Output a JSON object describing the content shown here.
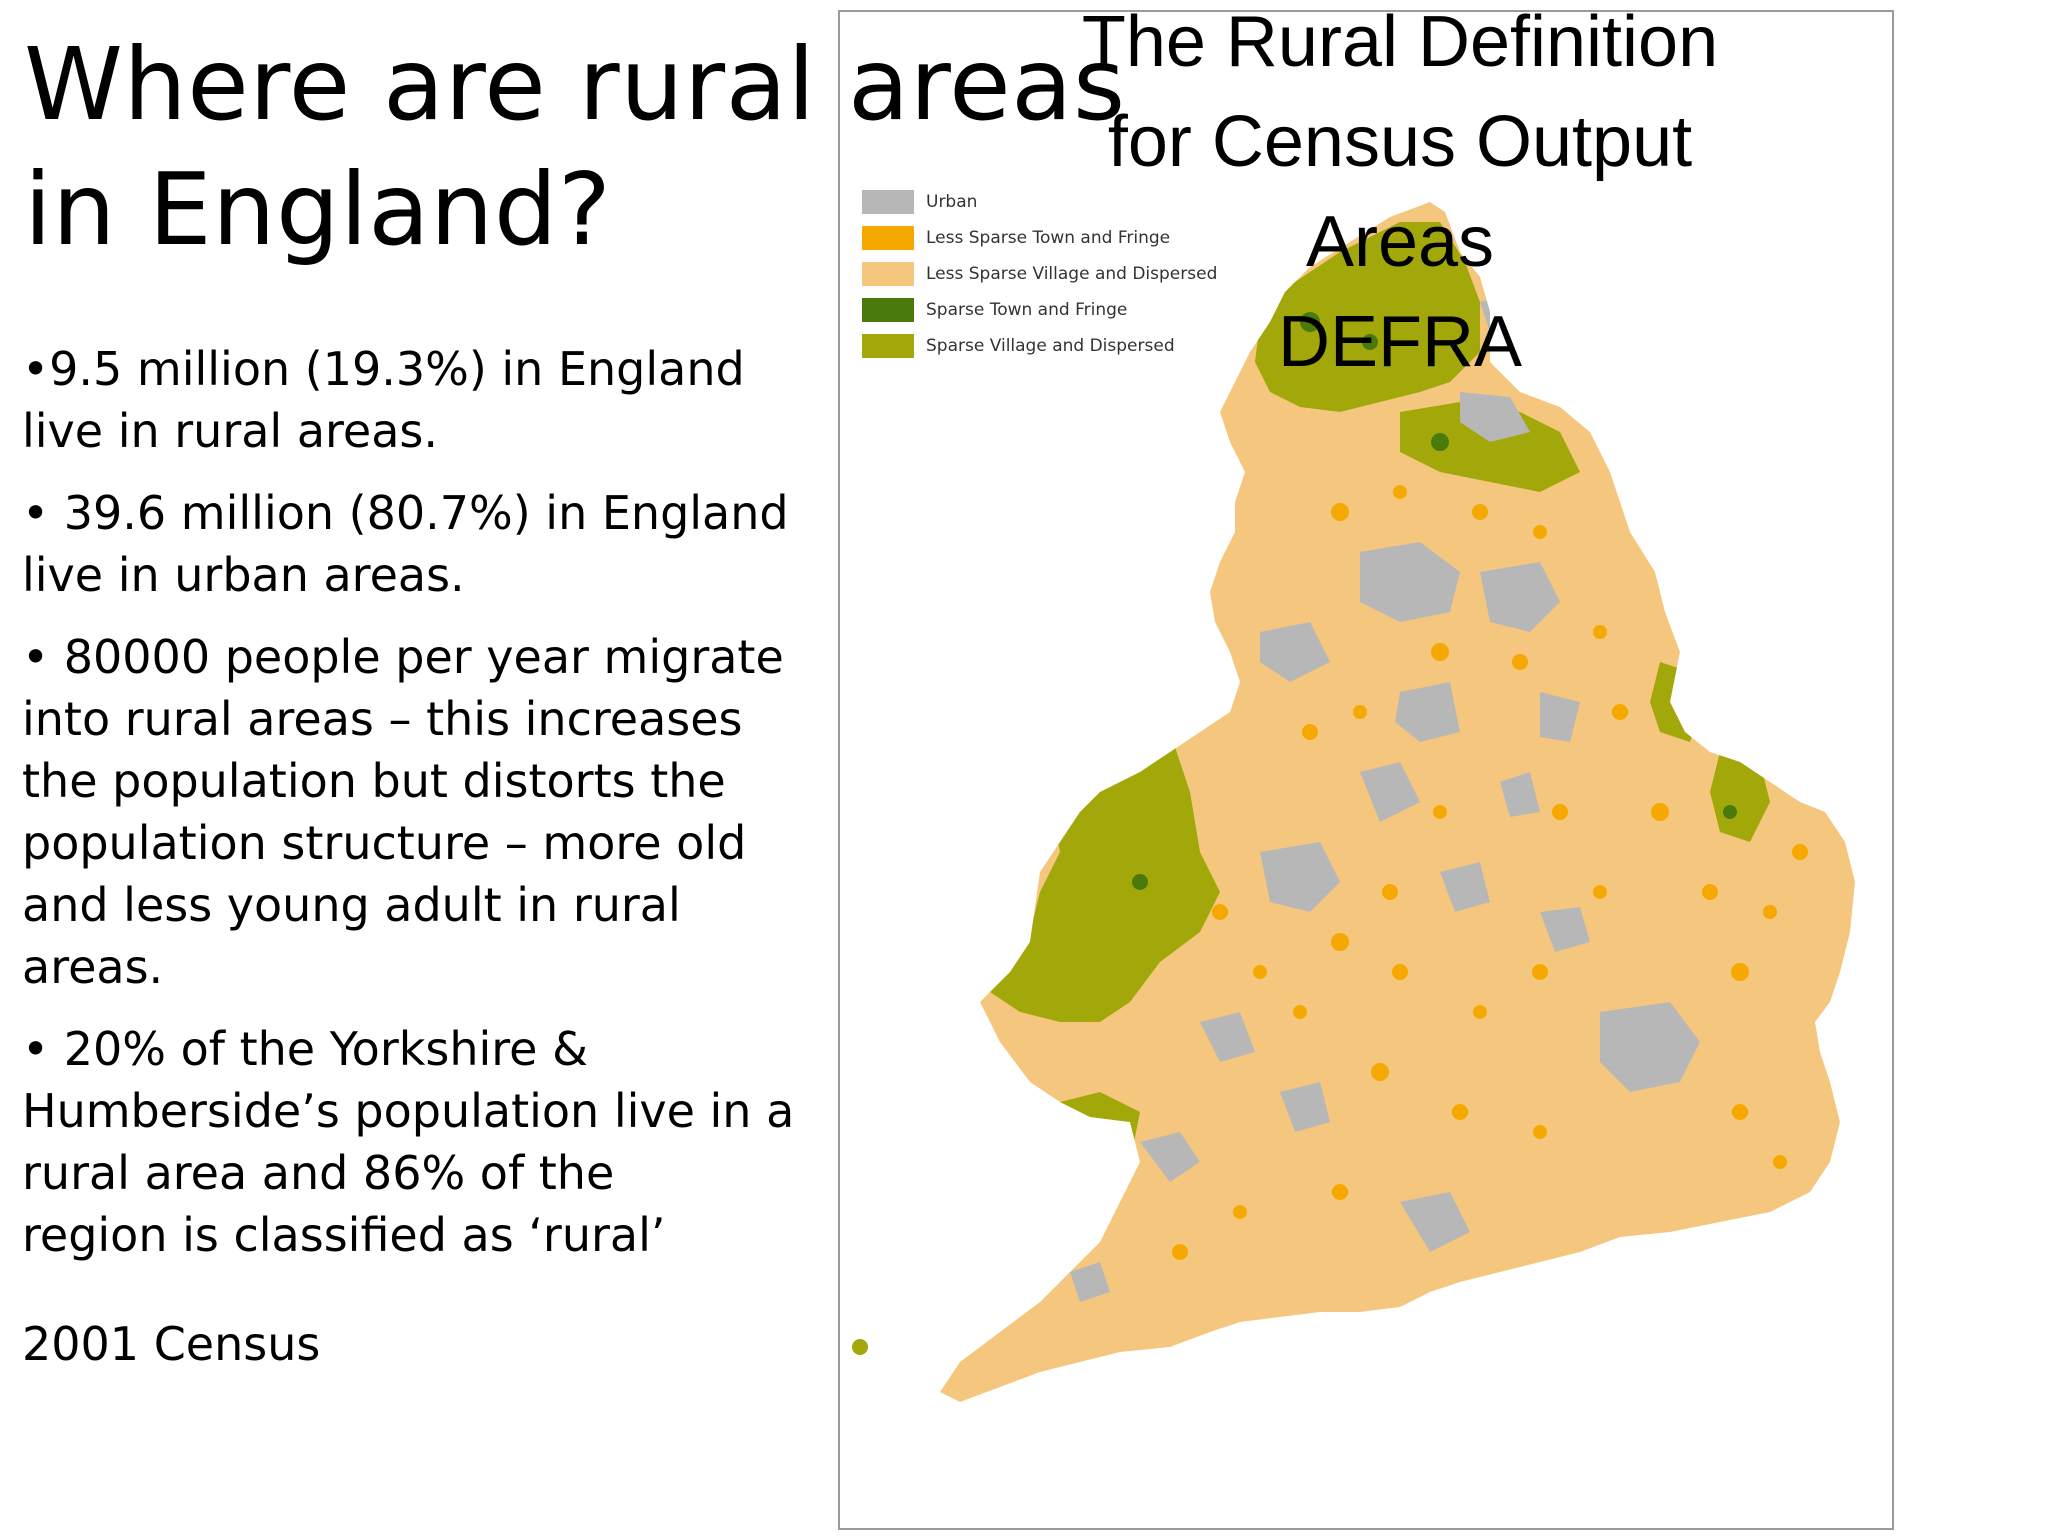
{
  "slide": {
    "title": "Where are rural areas\nin England?",
    "bullets": [
      "•9.5 million (19.3%) in England\nlive in rural areas.",
      "• 39.6 million (80.7%) in England\nlive in urban areas.",
      "• 80000 people per year migrate\ninto rural areas – this increases\nthe population but  distorts the\npopulation structure – more old\nand less young adult in rural\nareas.",
      "• 20% of the Yorkshire &\nHumberside’s population live in a\nrural area and 86% of the\nregion is classified as ‘rural’"
    ],
    "source": "2001 Census"
  },
  "map": {
    "title": "The Rural Definition\nfor Census Output\nAreas\nDEFRA",
    "legend": [
      {
        "label": "Urban",
        "color": "#b7b7b7"
      },
      {
        "label": "Less Sparse Town and Fringe",
        "color": "#f5a800"
      },
      {
        "label": "Less Sparse Village and Dispersed",
        "color": "#f5c77e"
      },
      {
        "label": "Sparse Town and Fringe",
        "color": "#4a7a0c"
      },
      {
        "label": "Sparse Village and Dispersed",
        "color": "#a3a80a"
      }
    ]
  }
}
